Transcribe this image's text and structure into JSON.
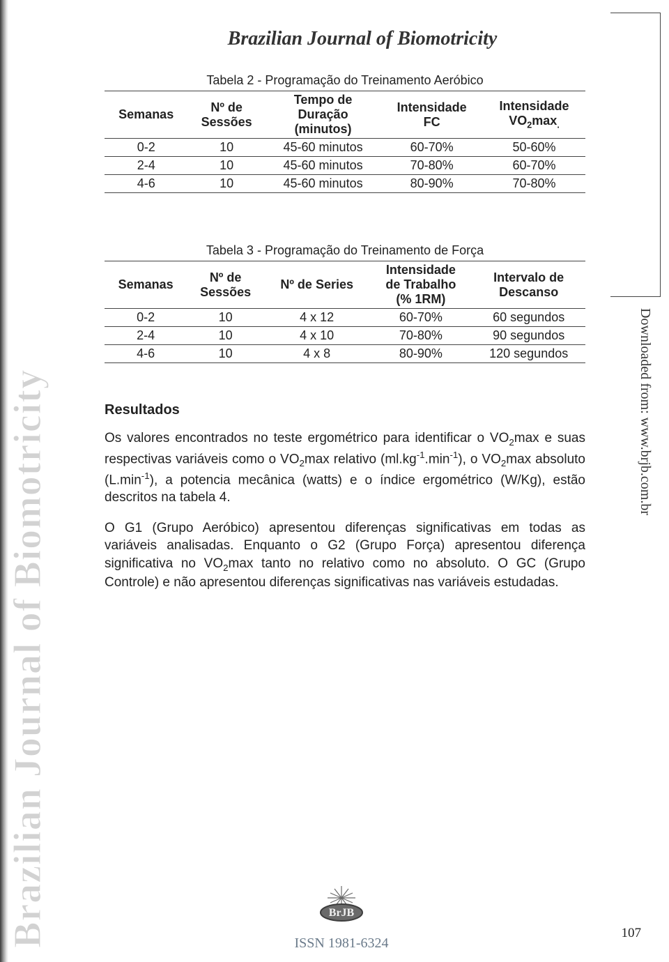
{
  "journal_title": "Brazilian Journal of Biomotricity",
  "vertical_left": "Brazilian Journal of Biomotricity",
  "right_side_text": "Downloaded from: www.brjb.com.br",
  "right_box_border_color": "#444444",
  "page_number": "107",
  "footer": {
    "logo_text": "BrJB",
    "issn": "ISSN 1981-6324"
  },
  "table2": {
    "caption": "Tabela 2 - Programação do Treinamento Aeróbico",
    "columns": [
      "Semanas",
      "Nº de Sessões",
      "Tempo de Duração (minutos)",
      "Intensidade FC",
      "Intensidade VO₂max."
    ],
    "col_html": [
      "Semanas",
      "Nº de<br>Sessões",
      "Tempo de<br>Duração<br>(minutos)",
      "Intensidade<br>FC",
      "Intensidade<br>VO<sub>2</sub>max<sub>.</sub>"
    ],
    "rows": [
      [
        "0-2",
        "10",
        "45-60 minutos",
        "60-70%",
        "50-60%"
      ],
      [
        "2-4",
        "10",
        "45-60 minutos",
        "70-80%",
        "60-70%"
      ],
      [
        "4-6",
        "10",
        "45-60 minutos",
        "80-90%",
        "70-80%"
      ]
    ],
    "border_color": "#444444",
    "header_fontweight": "bold",
    "fontsize": 18
  },
  "table3": {
    "caption": "Tabela 3 - Programação do Treinamento de Força",
    "columns": [
      "Semanas",
      "Nº de Sessões",
      "Nº de Series",
      "Intensidade de Trabalho (% 1RM)",
      "Intervalo de Descanso"
    ],
    "col_html": [
      "Semanas",
      "Nº de<br>Sessões",
      "Nº de Series",
      "Intensidade<br>de Trabalho<br>(% 1RM)",
      "Intervalo de<br>Descanso"
    ],
    "rows": [
      [
        "0-2",
        "10",
        "4 x 12",
        "60-70%",
        "60 segundos"
      ],
      [
        "2-4",
        "10",
        "4 x 10",
        "70-80%",
        "90 segundos"
      ],
      [
        "4-6",
        "10",
        "4 x 8",
        "80-90%",
        "120 segundos"
      ]
    ],
    "border_color": "#444444",
    "header_fontweight": "bold",
    "fontsize": 18
  },
  "resultados": {
    "heading": "Resultados",
    "p1_html": "Os valores encontrados no teste ergométrico para identificar o VO<sub>2</sub>max e suas respectivas variáveis como o VO<sub>2</sub>max relativo (ml.kg<sup>-1</sup>.min<sup>-1</sup>), o VO<sub>2</sub>max absoluto (L.min<sup>-1</sup>), a potencia mecânica (watts) e o índice ergométrico (W/Kg), estão descritos na tabela 4.",
    "p2_html": "O G1 (Grupo Aeróbico) apresentou diferenças significativas em todas as variáveis analisadas. Enquanto o G2 (Grupo Força) apresentou diferença significativa no VO<sub>2</sub>max tanto no relativo como no absoluto. O GC (Grupo Controle) e não apresentou diferenças significativas nas variáveis estudadas."
  },
  "colors": {
    "text": "#222222",
    "muted": "#6a7a8a",
    "vertical_left_fill": "#d2d2d2",
    "vertical_left_stroke": "#ffffff",
    "spine_gradient": [
      "#3a3a3a",
      "#9a9a9a",
      "#e8e8e8",
      "#ffffff"
    ]
  },
  "typography": {
    "body_font": "Arial, Helvetica, sans-serif",
    "title_font": "Georgia, Times New Roman, serif",
    "title_fontsize": 28,
    "table_fontsize": 18,
    "para_fontsize": 19,
    "vertical_left_fontsize": 56,
    "right_vertical_fontsize": 20
  }
}
